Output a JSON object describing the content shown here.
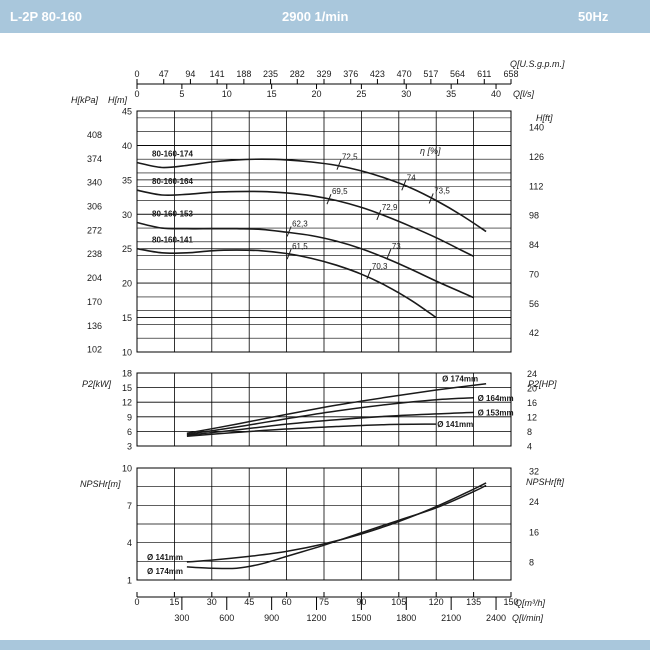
{
  "header": {
    "model": "L-2P 80-160",
    "speed": "2900 1/min",
    "frequency": "50Hz"
  },
  "chart_data": {
    "type": "line",
    "flow_axes": {
      "usgpm": {
        "label": "Q[U.S.g.p.m.]",
        "ticks": [
          0,
          47,
          94,
          141,
          188,
          235,
          282,
          329,
          376,
          423,
          470,
          517,
          564,
          611,
          658
        ]
      },
      "ls": {
        "label": "Q[l/s]",
        "ticks": [
          0,
          5,
          10,
          15,
          20,
          25,
          30,
          35,
          40
        ]
      },
      "m3h": {
        "label": "Q[m³/h]",
        "range": [
          0,
          150
        ],
        "ticks": [
          0,
          15,
          30,
          45,
          60,
          75,
          90,
          105,
          120,
          135,
          150
        ]
      },
      "lmin": {
        "label": "Q[l/min]",
        "ticks": [
          300,
          600,
          900,
          1200,
          1500,
          1800,
          2100,
          2400
        ]
      }
    },
    "head": {
      "ylabel_m": "H[m]",
      "ylabel_kpa": "H[kPa]",
      "ylabel_ft": "H[ft]",
      "ylim": [
        10,
        45
      ],
      "ticks_m": [
        10,
        15,
        20,
        25,
        30,
        35,
        40,
        45
      ],
      "ticks_kpa": [
        102,
        136,
        170,
        204,
        238,
        272,
        306,
        340,
        374,
        408
      ],
      "ticks_ft": [
        42,
        56,
        70,
        84,
        98,
        112,
        126,
        140
      ],
      "efficiency_label": "η [%]",
      "series": [
        {
          "name": "80-160-174",
          "x": [
            0,
            10,
            20,
            30,
            40,
            50,
            60,
            70,
            80,
            90,
            100,
            110,
            120,
            130,
            140
          ],
          "y": [
            37.5,
            36.8,
            37.1,
            37.6,
            37.9,
            38.0,
            37.9,
            37.6,
            37.1,
            36.3,
            35.2,
            33.8,
            32.0,
            29.9,
            27.5
          ]
        },
        {
          "name": "80-160-164",
          "x": [
            0,
            10,
            20,
            30,
            40,
            50,
            60,
            70,
            80,
            90,
            100,
            110,
            120,
            130,
            135
          ],
          "y": [
            33.5,
            32.8,
            32.9,
            33.2,
            33.3,
            33.3,
            33.1,
            32.7,
            32.0,
            31.0,
            29.7,
            28.2,
            26.6,
            24.8,
            23.9
          ]
        },
        {
          "name": "80-160-153",
          "x": [
            0,
            10,
            20,
            30,
            40,
            50,
            60,
            70,
            80,
            90,
            100,
            110,
            120,
            130,
            135
          ],
          "y": [
            28.8,
            28.0,
            27.9,
            27.9,
            27.9,
            27.8,
            27.4,
            26.9,
            26.1,
            25.0,
            23.6,
            22.0,
            20.3,
            18.7,
            17.9
          ]
        },
        {
          "name": "80-160-141",
          "x": [
            0,
            10,
            20,
            30,
            40,
            50,
            60,
            70,
            80,
            90,
            100,
            110,
            120
          ],
          "y": [
            25.0,
            24.4,
            24.4,
            24.7,
            24.8,
            24.7,
            24.3,
            23.6,
            22.6,
            21.3,
            19.6,
            17.5,
            15.0
          ]
        }
      ],
      "efficiency_marks": [
        {
          "label": "72,5",
          "x": 81,
          "y": 37.2
        },
        {
          "label": "74",
          "x": 107,
          "y": 34.2
        },
        {
          "label": "73,5",
          "x": 118,
          "y": 32.3
        },
        {
          "label": "69,5",
          "x": 77,
          "y": 32.2
        },
        {
          "label": "72,9",
          "x": 97,
          "y": 29.9
        },
        {
          "label": "62,3",
          "x": 61,
          "y": 27.5
        },
        {
          "label": "73",
          "x": 101,
          "y": 24.2
        },
        {
          "label": "61,5",
          "x": 61,
          "y": 24.2
        },
        {
          "label": "70,3",
          "x": 93,
          "y": 21.3
        }
      ]
    },
    "power": {
      "ylabel_kw": "P2[kW]",
      "ylabel_hp": "P2[HP]",
      "ylim": [
        3,
        18
      ],
      "ticks_kw": [
        3,
        6,
        9,
        12,
        15,
        18
      ],
      "ticks_hp": [
        4,
        8,
        12,
        16,
        20,
        24
      ],
      "series": [
        {
          "name": "Ø 174mm",
          "x": [
            20,
            40,
            60,
            80,
            100,
            120,
            140
          ],
          "y": [
            5.6,
            7.5,
            9.5,
            11.4,
            13.0,
            14.5,
            15.8
          ]
        },
        {
          "name": "Ø 164mm",
          "x": [
            20,
            40,
            60,
            80,
            100,
            120,
            135
          ],
          "y": [
            5.4,
            6.9,
            8.6,
            10.2,
            11.5,
            12.5,
            12.9
          ]
        },
        {
          "name": "Ø 153mm",
          "x": [
            20,
            40,
            60,
            80,
            100,
            120,
            135
          ],
          "y": [
            5.2,
            6.3,
            7.5,
            8.4,
            9.1,
            9.6,
            9.9
          ]
        },
        {
          "name": "Ø 141mm",
          "x": [
            20,
            40,
            60,
            80,
            100,
            120
          ],
          "y": [
            5.0,
            5.8,
            6.5,
            7.0,
            7.4,
            7.5
          ]
        }
      ]
    },
    "npsh": {
      "ylabel_m": "NPSHr[m]",
      "ylabel_ft": "NPSHr[ft]",
      "ylim": [
        1,
        10
      ],
      "ticks_m": [
        1,
        4,
        7,
        10
      ],
      "ticks_ft": [
        8,
        16,
        24,
        32
      ],
      "series": [
        {
          "name": "Ø 141mm",
          "x": [
            20,
            30,
            45,
            60,
            75,
            90,
            105,
            120,
            135,
            140
          ],
          "y": [
            2.45,
            2.6,
            2.9,
            3.3,
            3.9,
            4.7,
            5.7,
            6.9,
            8.3,
            8.8
          ]
        },
        {
          "name": "Ø 174mm",
          "x": [
            20,
            30,
            40,
            50,
            60,
            75,
            90,
            105,
            120,
            135,
            140
          ],
          "y": [
            2.05,
            1.95,
            1.95,
            2.3,
            2.9,
            3.8,
            4.8,
            5.8,
            6.8,
            8.1,
            8.6
          ]
        }
      ]
    }
  }
}
